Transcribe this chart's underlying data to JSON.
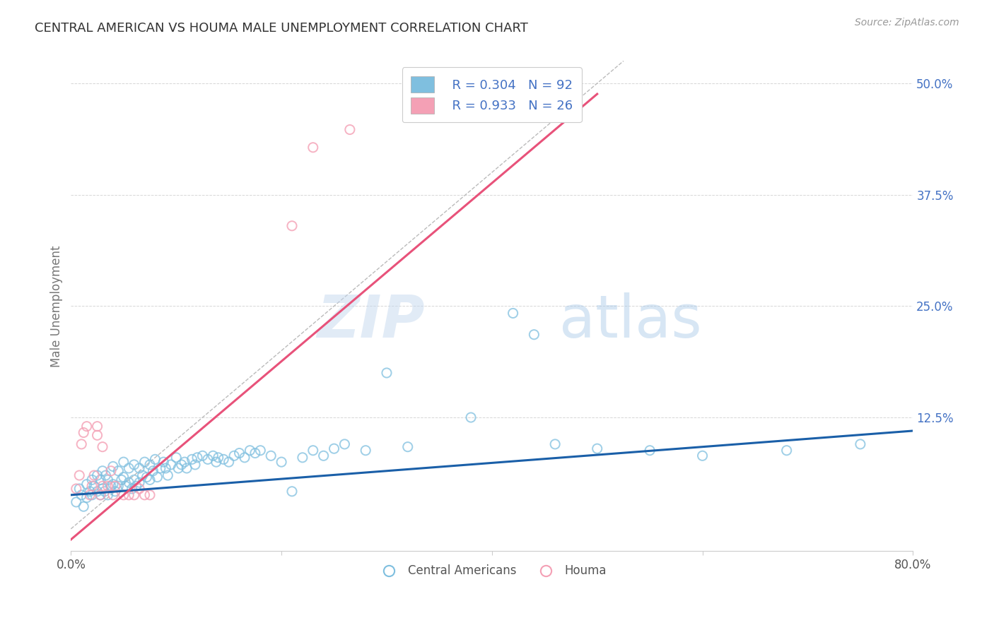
{
  "title": "CENTRAL AMERICAN VS HOUMA MALE UNEMPLOYMENT CORRELATION CHART",
  "source": "Source: ZipAtlas.com",
  "ylabel": "Male Unemployment",
  "xlim": [
    0.0,
    0.8
  ],
  "ylim": [
    -0.025,
    0.525
  ],
  "xticks": [
    0.0,
    0.2,
    0.4,
    0.6,
    0.8
  ],
  "xticklabels": [
    "0.0%",
    "",
    "",
    "",
    "80.0%"
  ],
  "ytick_vals_right": [
    0.5,
    0.375,
    0.25,
    0.125,
    0.0
  ],
  "ytick_labels_right": [
    "50.0%",
    "37.5%",
    "25.0%",
    "12.5%",
    ""
  ],
  "grid_color": "#cccccc",
  "watermark_zip": "ZIP",
  "watermark_atlas": "atlas",
  "legend_r1": "R = 0.304",
  "legend_n1": "N = 92",
  "legend_r2": "R = 0.933",
  "legend_n2": "N = 26",
  "blue_color": "#7fbfdf",
  "pink_color": "#f4a0b5",
  "blue_line_color": "#1a5fa8",
  "pink_line_color": "#e8527a",
  "diag_line_color": "#bbbbbb",
  "title_color": "#333333",
  "axis_label_color": "#777777",
  "right_tick_color": "#4472c4",
  "source_color": "#999999",
  "ca_points_x": [
    0.005,
    0.008,
    0.01,
    0.012,
    0.015,
    0.015,
    0.018,
    0.02,
    0.02,
    0.022,
    0.025,
    0.025,
    0.028,
    0.028,
    0.03,
    0.03,
    0.032,
    0.033,
    0.035,
    0.035,
    0.038,
    0.04,
    0.04,
    0.042,
    0.045,
    0.045,
    0.048,
    0.05,
    0.05,
    0.052,
    0.055,
    0.055,
    0.058,
    0.06,
    0.06,
    0.062,
    0.065,
    0.065,
    0.068,
    0.07,
    0.072,
    0.075,
    0.075,
    0.078,
    0.08,
    0.082,
    0.085,
    0.088,
    0.09,
    0.092,
    0.095,
    0.1,
    0.102,
    0.105,
    0.108,
    0.11,
    0.115,
    0.118,
    0.12,
    0.125,
    0.13,
    0.135,
    0.138,
    0.14,
    0.145,
    0.15,
    0.155,
    0.16,
    0.165,
    0.17,
    0.175,
    0.18,
    0.19,
    0.2,
    0.21,
    0.22,
    0.23,
    0.24,
    0.25,
    0.26,
    0.28,
    0.3,
    0.32,
    0.38,
    0.42,
    0.44,
    0.46,
    0.5,
    0.55,
    0.6,
    0.68,
    0.75
  ],
  "ca_points_y": [
    0.03,
    0.045,
    0.038,
    0.025,
    0.05,
    0.035,
    0.042,
    0.055,
    0.038,
    0.048,
    0.06,
    0.042,
    0.038,
    0.055,
    0.065,
    0.045,
    0.042,
    0.06,
    0.055,
    0.038,
    0.048,
    0.07,
    0.05,
    0.042,
    0.065,
    0.048,
    0.055,
    0.075,
    0.058,
    0.048,
    0.068,
    0.052,
    0.045,
    0.072,
    0.055,
    0.048,
    0.068,
    0.052,
    0.06,
    0.075,
    0.058,
    0.072,
    0.055,
    0.065,
    0.078,
    0.058,
    0.068,
    0.075,
    0.068,
    0.06,
    0.072,
    0.08,
    0.068,
    0.072,
    0.075,
    0.068,
    0.078,
    0.072,
    0.08,
    0.082,
    0.078,
    0.082,
    0.075,
    0.08,
    0.078,
    0.075,
    0.082,
    0.085,
    0.08,
    0.088,
    0.085,
    0.088,
    0.082,
    0.075,
    0.042,
    0.08,
    0.088,
    0.082,
    0.09,
    0.095,
    0.088,
    0.175,
    0.092,
    0.125,
    0.242,
    0.218,
    0.095,
    0.09,
    0.088,
    0.082,
    0.088,
    0.095
  ],
  "houma_points_x": [
    0.005,
    0.008,
    0.01,
    0.012,
    0.015,
    0.018,
    0.02,
    0.022,
    0.025,
    0.025,
    0.028,
    0.03,
    0.03,
    0.035,
    0.038,
    0.04,
    0.042,
    0.05,
    0.055,
    0.06,
    0.065,
    0.07,
    0.075,
    0.21,
    0.23,
    0.265
  ],
  "houma_points_y": [
    0.045,
    0.06,
    0.095,
    0.108,
    0.115,
    0.038,
    0.048,
    0.06,
    0.105,
    0.115,
    0.038,
    0.048,
    0.092,
    0.048,
    0.065,
    0.038,
    0.048,
    0.038,
    0.038,
    0.038,
    0.045,
    0.038,
    0.038,
    0.34,
    0.428,
    0.448
  ],
  "ca_line_x": [
    0.0,
    0.8
  ],
  "ca_line_y": [
    0.038,
    0.11
  ],
  "houma_line_x": [
    0.0,
    0.5
  ],
  "houma_line_y": [
    -0.012,
    0.488
  ],
  "diag_line_x": [
    0.0,
    0.525
  ],
  "diag_line_y": [
    0.0,
    0.525
  ],
  "legend_label_ca": "Central Americans",
  "legend_label_houma": "Houma"
}
